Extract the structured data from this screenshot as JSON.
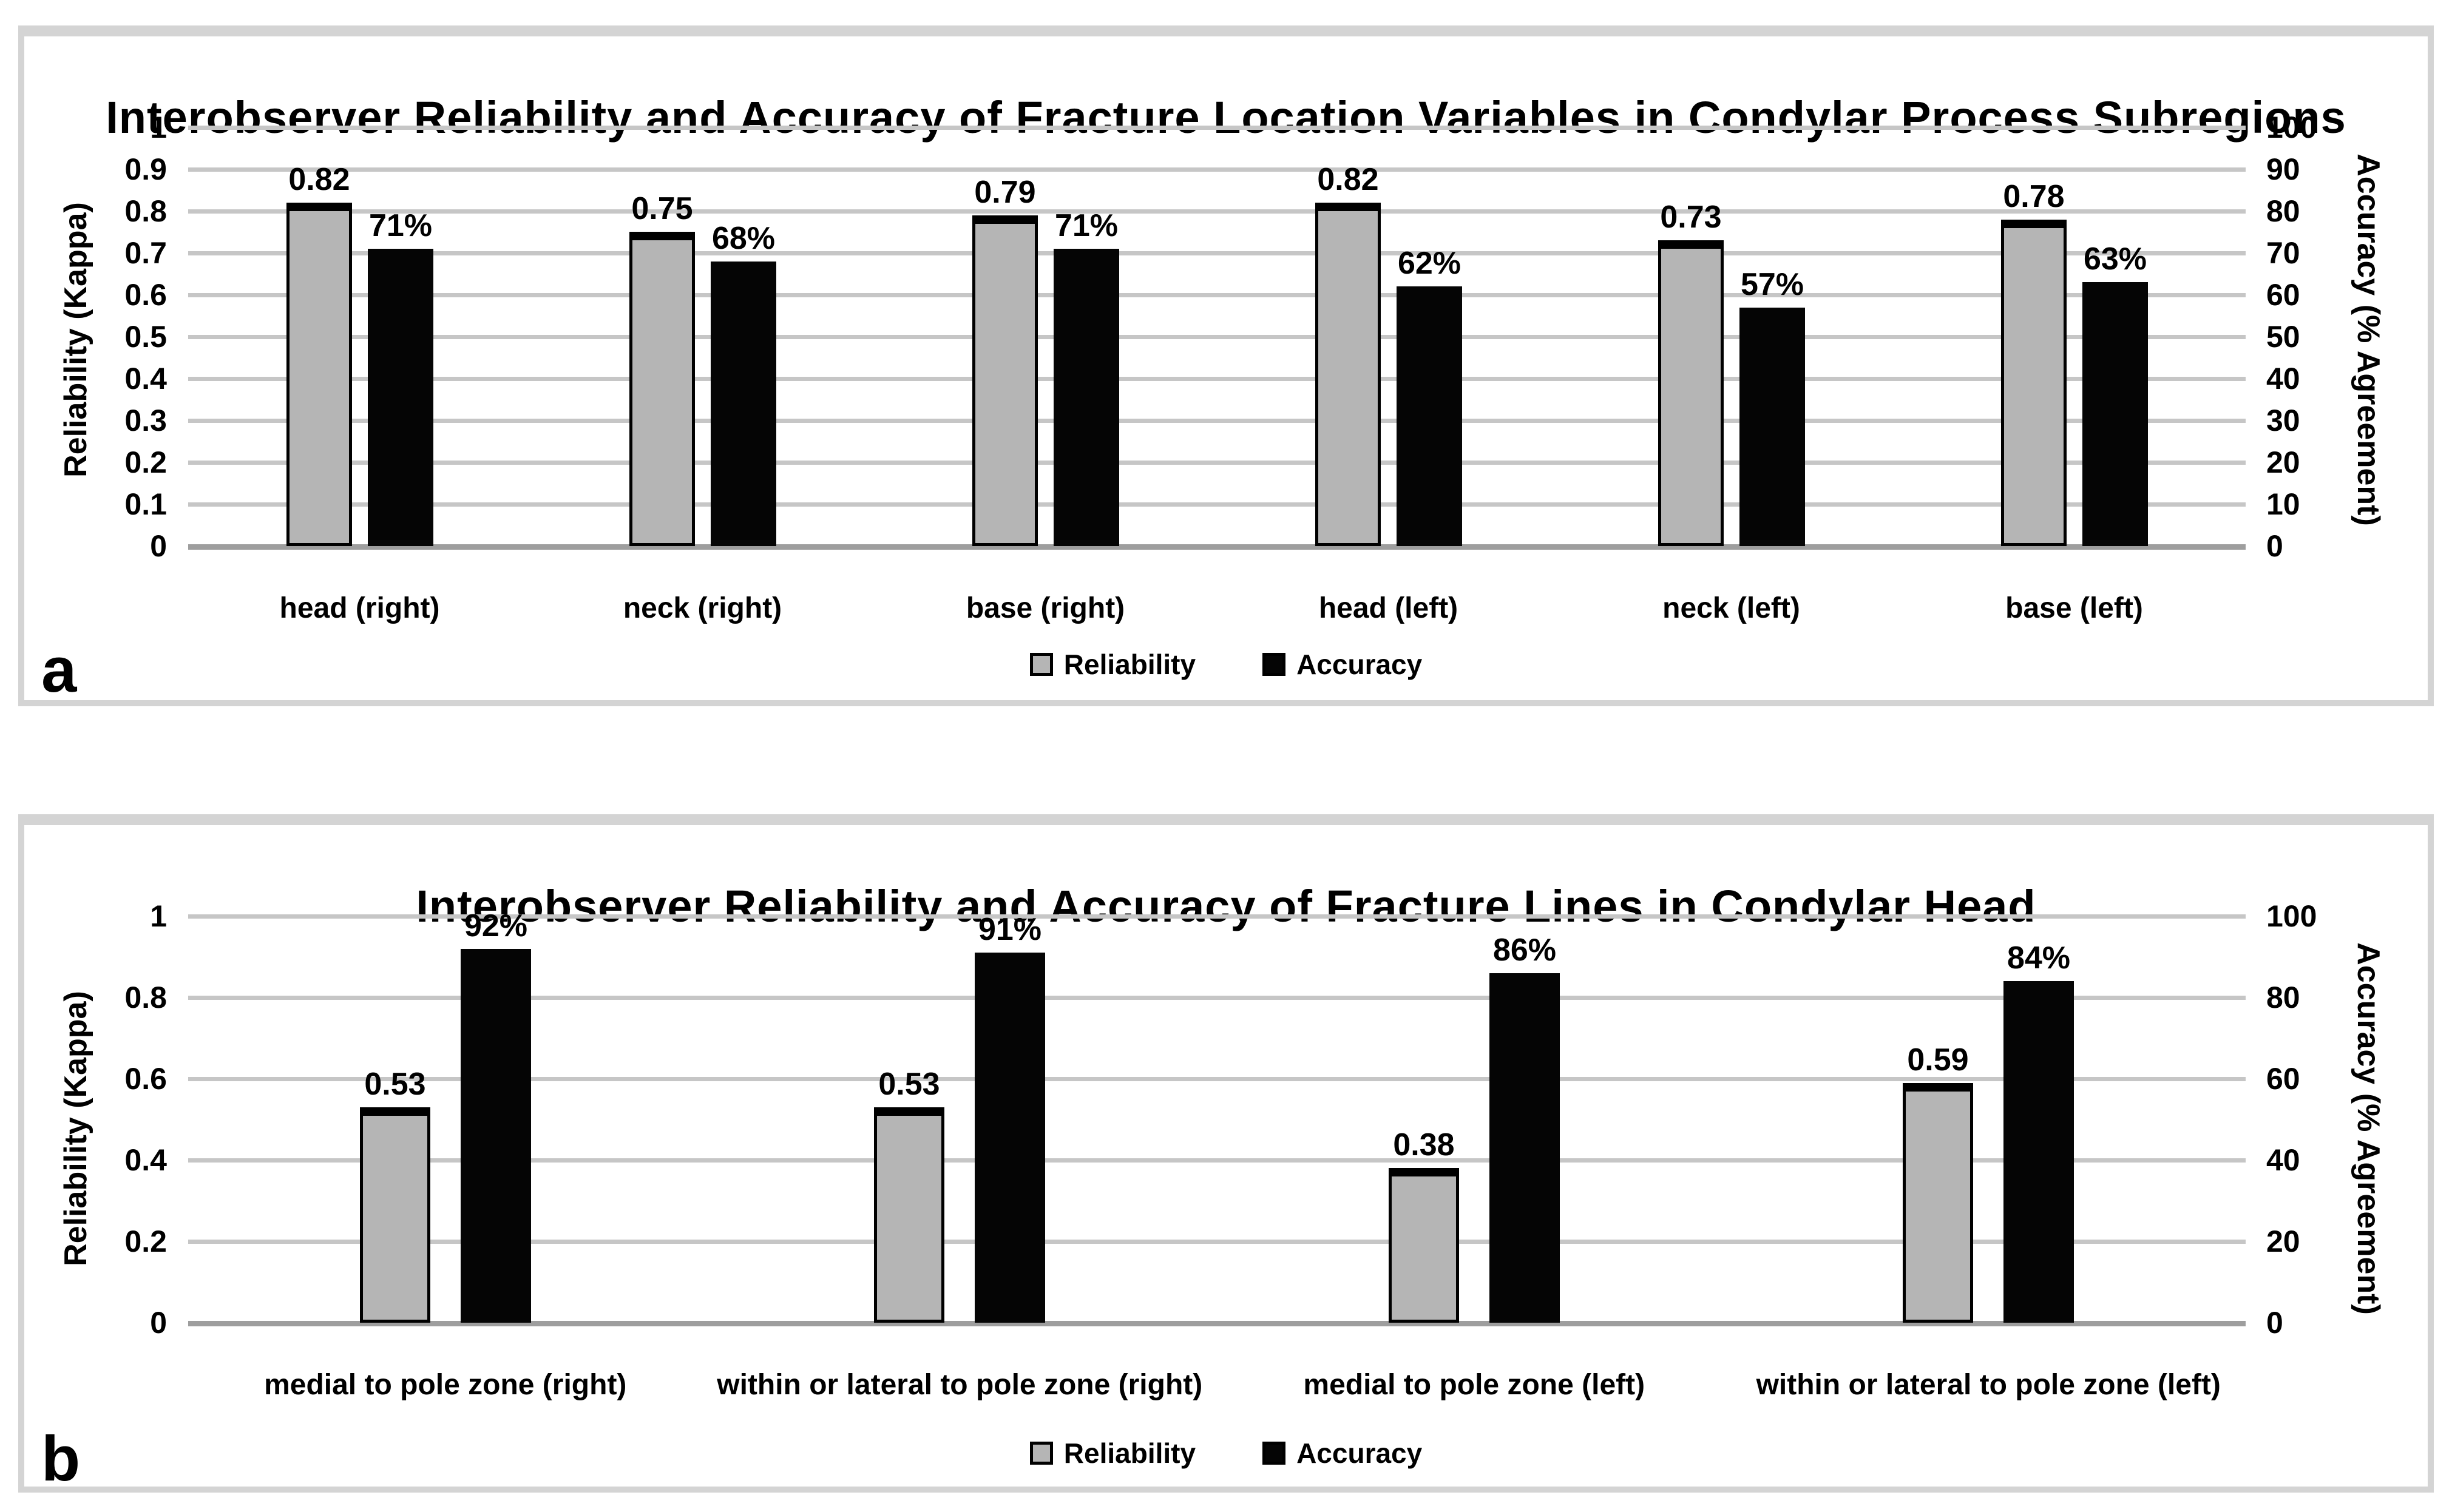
{
  "chart_data": [
    {
      "type": "bar",
      "panel_letter": "a",
      "title": "Interobserver Reliability and Accuracy of Fracture Location Variables in Condylar Process Subregions",
      "categories": [
        "head (right)",
        "neck (right)",
        "base (right)",
        "head (left)",
        "neck (left)",
        "base (left)"
      ],
      "series": [
        {
          "name": "Reliability",
          "axis": "left",
          "color": "#b5b5b5",
          "values": [
            0.82,
            0.75,
            0.79,
            0.82,
            0.73,
            0.78
          ],
          "labels": [
            "0.82",
            "0.75",
            "0.79",
            "0.82",
            "0.73",
            "0.78"
          ]
        },
        {
          "name": "Accuracy",
          "axis": "right",
          "color": "#050505",
          "values": [
            71,
            68,
            71,
            62,
            57,
            63
          ],
          "labels": [
            "71%",
            "68%",
            "71%",
            "62%",
            "57%",
            "63%"
          ]
        }
      ],
      "left_axis": {
        "label": "Reliability (Kappa)",
        "min": 0,
        "max": 1,
        "ticks": [
          "1",
          "0.9",
          "0.8",
          "0.7",
          "0.6",
          "0.5",
          "0.4",
          "0.3",
          "0.2",
          "0.1",
          "0"
        ]
      },
      "right_axis": {
        "label": "Accuracy (% Agreement)",
        "min": 0,
        "max": 100,
        "ticks": [
          "100",
          "90",
          "80",
          "70",
          "60",
          "50",
          "40",
          "30",
          "20",
          "10",
          "0"
        ]
      },
      "grid": true,
      "legend_position": "bottom"
    },
    {
      "type": "bar",
      "panel_letter": "b",
      "title": "Interobserver Reliability and Accuracy of Fracture Lines in Condylar Head",
      "categories": [
        "medial to pole zone (right)",
        "within or lateral to pole zone (right)",
        "medial to pole zone (left)",
        "within or lateral to pole zone (left)"
      ],
      "series": [
        {
          "name": "Reliability",
          "axis": "left",
          "color": "#b5b5b5",
          "values": [
            0.53,
            0.53,
            0.38,
            0.59
          ],
          "labels": [
            "0.53",
            "0.53",
            "0.38",
            "0.59"
          ]
        },
        {
          "name": "Accuracy",
          "axis": "right",
          "color": "#050505",
          "values": [
            92,
            91,
            86,
            84
          ],
          "labels": [
            "92%",
            "91%",
            "86%",
            "84%"
          ]
        }
      ],
      "left_axis": {
        "label": "Reliability (Kappa)",
        "min": 0,
        "max": 1,
        "ticks": [
          "1",
          "0.8",
          "0.6",
          "0.4",
          "0.2",
          "0"
        ]
      },
      "right_axis": {
        "label": "Accuracy (% Agreement)",
        "min": 0,
        "max": 100,
        "ticks": [
          "100",
          "80",
          "60",
          "40",
          "20",
          "0"
        ]
      },
      "grid": true,
      "legend_position": "bottom"
    }
  ]
}
